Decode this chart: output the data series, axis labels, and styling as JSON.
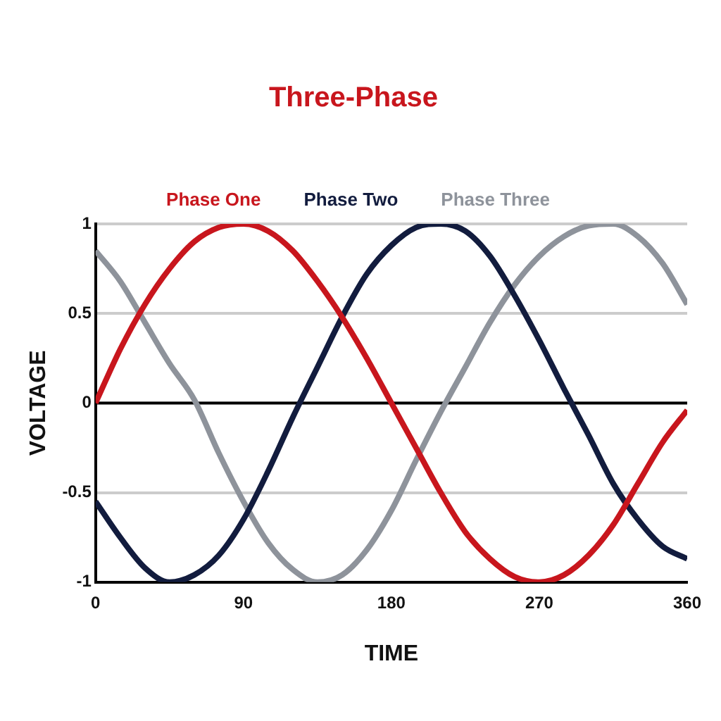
{
  "chart_data": {
    "type": "line",
    "title": "Three-Phase",
    "xlabel": "TIME",
    "ylabel": "VOLTAGE",
    "x": [
      0,
      15,
      30,
      45,
      60,
      75,
      90,
      105,
      120,
      135,
      150,
      165,
      180,
      195,
      210,
      225,
      240,
      255,
      270,
      285,
      300,
      315,
      330,
      345,
      360
    ],
    "series": [
      {
        "name": "Phase One",
        "color": "#c8161d",
        "values": [
          0,
          0.3,
          0.55,
          0.75,
          0.9,
          0.98,
          1,
          0.96,
          0.85,
          0.68,
          0.48,
          0.25,
          0,
          -0.25,
          -0.5,
          -0.72,
          -0.87,
          -0.97,
          -1,
          -0.96,
          -0.85,
          -0.68,
          -0.45,
          -0.22,
          -0.04
        ]
      },
      {
        "name": "Phase Two",
        "color": "#121c3e",
        "values": [
          -0.55,
          -0.75,
          -0.92,
          -1,
          -0.96,
          -0.85,
          -0.65,
          -0.38,
          -0.08,
          0.2,
          0.48,
          0.72,
          0.88,
          0.98,
          1,
          0.96,
          0.82,
          0.6,
          0.35,
          0.08,
          -0.18,
          -0.45,
          -0.65,
          -0.8,
          -0.87
        ]
      },
      {
        "name": "Phase Three",
        "color": "#8e939b",
        "values": [
          0.85,
          0.68,
          0.45,
          0.22,
          0.02,
          -0.28,
          -0.55,
          -0.78,
          -0.93,
          -1,
          -0.96,
          -0.82,
          -0.6,
          -0.32,
          -0.05,
          0.2,
          0.45,
          0.66,
          0.82,
          0.93,
          0.99,
          1,
          0.93,
          0.78,
          0.55
        ]
      }
    ],
    "xlim": [
      0,
      360
    ],
    "xticks": [
      0,
      90,
      180,
      270,
      360
    ],
    "ylim": [
      -1,
      1
    ],
    "yticks": [
      -1,
      -0.5,
      0,
      0.5,
      1
    ],
    "ref_lines": [
      {
        "axis": "y",
        "value": 0,
        "color": "#000000"
      }
    ],
    "grid": "y",
    "legend": "top",
    "marker": "none",
    "line_style": "solid"
  }
}
